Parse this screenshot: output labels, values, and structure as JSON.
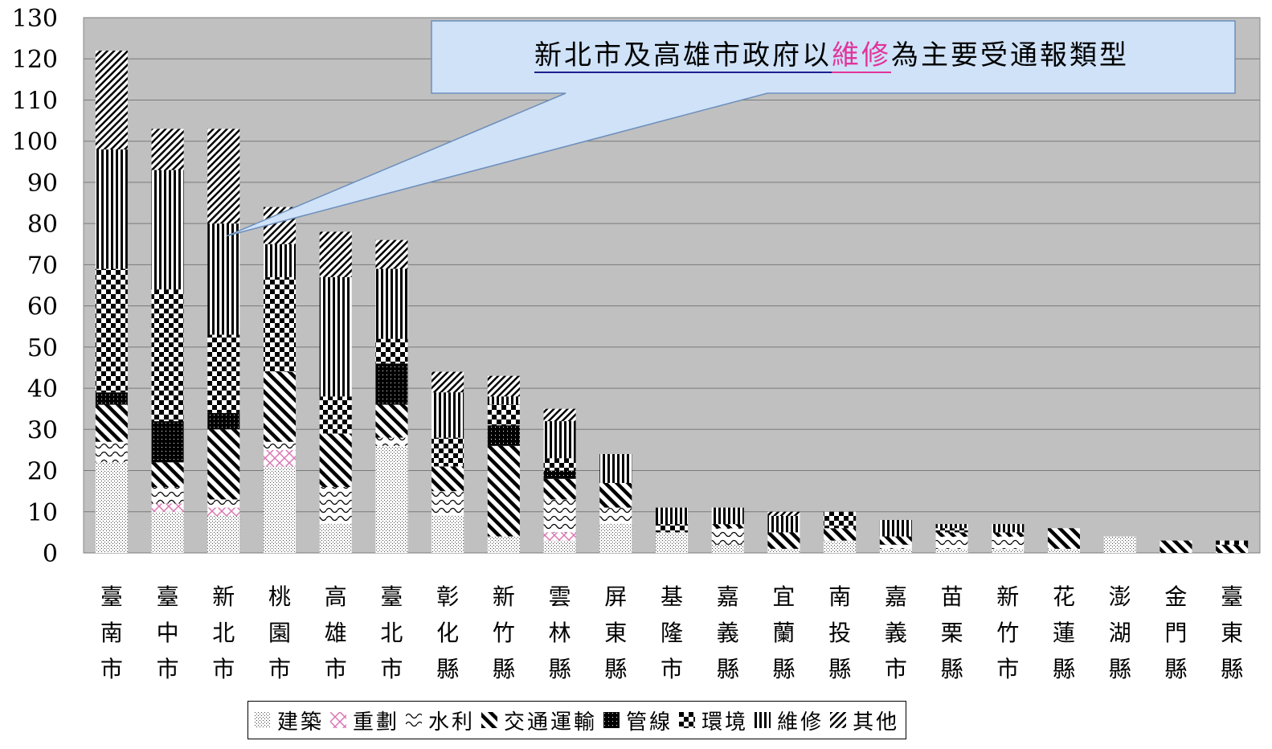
{
  "chart_data": {
    "type": "bar",
    "stacked": true,
    "title": "",
    "xlabel": "",
    "ylabel": "",
    "ylim": [
      0,
      130
    ],
    "yticks": [
      0,
      10,
      20,
      30,
      40,
      50,
      60,
      70,
      80,
      90,
      100,
      110,
      120,
      130
    ],
    "grid": true,
    "legend_position": "bottom",
    "categories": [
      "臺南市",
      "臺中市",
      "新北市",
      "桃園市",
      "高雄市",
      "臺北市",
      "彰化縣",
      "新竹縣",
      "雲林縣",
      "屏東縣",
      "基隆市",
      "嘉義縣",
      "宜蘭縣",
      "南投縣",
      "嘉義市",
      "苗栗縣",
      "新竹市",
      "花蓮縣",
      "澎湖縣",
      "金門縣",
      "臺東縣"
    ],
    "series": [
      {
        "name": "建築",
        "pattern": "dots",
        "values": [
          22,
          10,
          9,
          21,
          7,
          26,
          9,
          4,
          3,
          7,
          5,
          2,
          1,
          3,
          1,
          1,
          1,
          1,
          4,
          0,
          0
        ]
      },
      {
        "name": "重劃",
        "pattern": "pink-cross",
        "values": [
          0,
          2,
          2,
          4,
          0,
          0,
          0,
          0,
          2,
          0,
          0,
          0,
          0,
          0,
          0,
          0,
          0,
          0,
          0,
          0,
          0
        ]
      },
      {
        "name": "水利",
        "pattern": "waves",
        "values": [
          5,
          4,
          2,
          2,
          9,
          2,
          6,
          0,
          8,
          4,
          0,
          4,
          0,
          0,
          1,
          3,
          3,
          0,
          0,
          0,
          0
        ]
      },
      {
        "name": "交通運輸",
        "pattern": "diagonal",
        "values": [
          9,
          6,
          17,
          17,
          13,
          8,
          6,
          22,
          5,
          6,
          0,
          1,
          4,
          3,
          2,
          1,
          1,
          5,
          0,
          3,
          2
        ]
      },
      {
        "name": "管線",
        "pattern": "solid-dots",
        "values": [
          3,
          10,
          4,
          0,
          0,
          10,
          0,
          5,
          2,
          0,
          0,
          0,
          0,
          0,
          0,
          0,
          0,
          0,
          0,
          0,
          0
        ]
      },
      {
        "name": "環境",
        "pattern": "checker",
        "values": [
          30,
          32,
          19,
          23,
          9,
          6,
          7,
          5,
          3,
          0,
          2,
          0,
          0,
          4,
          0,
          1,
          0,
          0,
          0,
          0,
          1
        ]
      },
      {
        "name": "維修",
        "pattern": "vertical",
        "values": [
          29,
          29,
          27,
          8,
          29,
          17,
          11,
          2,
          9,
          7,
          4,
          4,
          4,
          0,
          4,
          1,
          2,
          0,
          0,
          0,
          0
        ]
      },
      {
        "name": "其他",
        "pattern": "hatch",
        "values": [
          24,
          10,
          23,
          9,
          11,
          7,
          5,
          5,
          3,
          0,
          0,
          0,
          1,
          0,
          0,
          0,
          0,
          0,
          0,
          0,
          0
        ]
      }
    ],
    "annotation": {
      "text_before": "新北市及高雄市政府以",
      "text_highlight": "維修",
      "text_after": "為主要受通報類型",
      "points_to": "新北市"
    }
  },
  "colors": {
    "plot_background": "#c0c0c0",
    "callout_fill": "#cfe2f8",
    "callout_stroke": "#6d8fbc",
    "highlight": "#e2339a",
    "underline_main": "#1f1f8f"
  }
}
